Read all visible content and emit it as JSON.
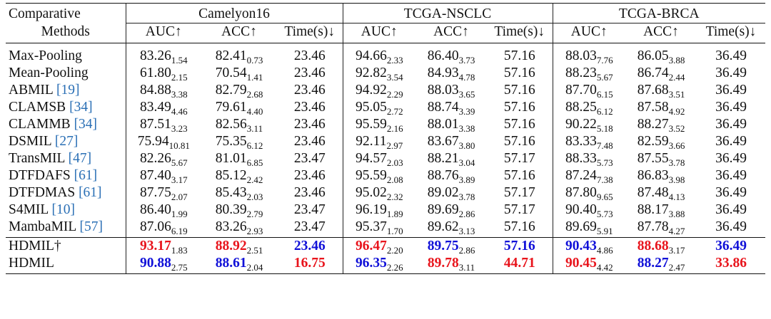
{
  "header": {
    "method_col_line1": "Comparative",
    "method_col_line2": "Methods",
    "groups": [
      "Camelyon16",
      "TCGA-NSCLC",
      "TCGA-BRCA"
    ],
    "subcols": [
      "AUC↑",
      "ACC↑",
      "Time(s)↓"
    ]
  },
  "rows": [
    {
      "name": "Max-Pooling",
      "ref": "",
      "cells": [
        [
          "83.26",
          "1.54"
        ],
        [
          "82.41",
          "0.73"
        ],
        [
          "23.46",
          ""
        ],
        [
          "94.66",
          "2.33"
        ],
        [
          "86.40",
          "3.73"
        ],
        [
          "57.16",
          ""
        ],
        [
          "88.03",
          "7.76"
        ],
        [
          "86.05",
          "3.88"
        ],
        [
          "36.49",
          ""
        ]
      ]
    },
    {
      "name": "Mean-Pooling",
      "ref": "",
      "cells": [
        [
          "61.80",
          "2.15"
        ],
        [
          "70.54",
          "1.41"
        ],
        [
          "23.46",
          ""
        ],
        [
          "92.82",
          "3.54"
        ],
        [
          "84.93",
          "4.78"
        ],
        [
          "57.16",
          ""
        ],
        [
          "88.23",
          "5.67"
        ],
        [
          "86.74",
          "2.44"
        ],
        [
          "36.49",
          ""
        ]
      ]
    },
    {
      "name": "ABMIL ",
      "ref": "[19]",
      "cells": [
        [
          "84.88",
          "3.38"
        ],
        [
          "82.79",
          "2.68"
        ],
        [
          "23.46",
          ""
        ],
        [
          "94.92",
          "2.29"
        ],
        [
          "88.03",
          "3.65"
        ],
        [
          "57.16",
          ""
        ],
        [
          "87.70",
          "6.15"
        ],
        [
          "87.68",
          "3.51"
        ],
        [
          "36.49",
          ""
        ]
      ]
    },
    {
      "name": "CLAMSB ",
      "ref": "[34]",
      "cells": [
        [
          "83.49",
          "4.46"
        ],
        [
          "79.61",
          "4.40"
        ],
        [
          "23.46",
          ""
        ],
        [
          "95.05",
          "2.72"
        ],
        [
          "88.74",
          "3.39"
        ],
        [
          "57.16",
          ""
        ],
        [
          "88.25",
          "6.12"
        ],
        [
          "87.58",
          "4.92"
        ],
        [
          "36.49",
          ""
        ]
      ]
    },
    {
      "name": "CLAMMB ",
      "ref": "[34]",
      "cells": [
        [
          "87.51",
          "3.23"
        ],
        [
          "82.56",
          "3.11"
        ],
        [
          "23.46",
          ""
        ],
        [
          "95.59",
          "2.16"
        ],
        [
          "88.01",
          "3.38"
        ],
        [
          "57.16",
          ""
        ],
        [
          "90.22",
          "5.18"
        ],
        [
          "88.27",
          "3.52"
        ],
        [
          "36.49",
          ""
        ]
      ]
    },
    {
      "name": "DSMIL ",
      "ref": "[27]",
      "cells": [
        [
          "75.94",
          "10.81"
        ],
        [
          "75.35",
          "6.12"
        ],
        [
          "23.46",
          ""
        ],
        [
          "92.11",
          "2.97"
        ],
        [
          "83.67",
          "3.80"
        ],
        [
          "57.16",
          ""
        ],
        [
          "83.33",
          "7.48"
        ],
        [
          "82.59",
          "3.66"
        ],
        [
          "36.49",
          ""
        ]
      ]
    },
    {
      "name": "TransMIL ",
      "ref": "[47]",
      "cells": [
        [
          "82.26",
          "5.67"
        ],
        [
          "81.01",
          "6.85"
        ],
        [
          "23.47",
          ""
        ],
        [
          "94.57",
          "2.03"
        ],
        [
          "88.21",
          "3.04"
        ],
        [
          "57.17",
          ""
        ],
        [
          "88.33",
          "5.73"
        ],
        [
          "87.55",
          "3.78"
        ],
        [
          "36.49",
          ""
        ]
      ]
    },
    {
      "name": "DTFDAFS ",
      "ref": "[61]",
      "cells": [
        [
          "87.40",
          "3.17"
        ],
        [
          "85.12",
          "2.42"
        ],
        [
          "23.46",
          ""
        ],
        [
          "95.59",
          "2.08"
        ],
        [
          "88.76",
          "3.89"
        ],
        [
          "57.16",
          ""
        ],
        [
          "87.24",
          "7.38"
        ],
        [
          "86.83",
          "3.98"
        ],
        [
          "36.49",
          ""
        ]
      ]
    },
    {
      "name": "DTFDMAS ",
      "ref": "[61]",
      "cells": [
        [
          "87.75",
          "2.07"
        ],
        [
          "85.43",
          "2.03"
        ],
        [
          "23.46",
          ""
        ],
        [
          "95.02",
          "2.32"
        ],
        [
          "89.02",
          "3.78"
        ],
        [
          "57.17",
          ""
        ],
        [
          "87.80",
          "9.65"
        ],
        [
          "87.48",
          "4.13"
        ],
        [
          "36.49",
          ""
        ]
      ]
    },
    {
      "name": "S4MIL ",
      "ref": "[10]",
      "cells": [
        [
          "86.40",
          "1.99"
        ],
        [
          "80.39",
          "2.79"
        ],
        [
          "23.47",
          ""
        ],
        [
          "96.19",
          "1.89"
        ],
        [
          "89.69",
          "2.86"
        ],
        [
          "57.17",
          ""
        ],
        [
          "90.40",
          "5.73"
        ],
        [
          "88.17",
          "3.88"
        ],
        [
          "36.49",
          ""
        ]
      ]
    },
    {
      "name": "MambaMIL ",
      "ref": "[57]",
      "cells": [
        [
          "87.06",
          "6.19"
        ],
        [
          "83.26",
          "2.93"
        ],
        [
          "23.47",
          ""
        ],
        [
          "95.37",
          "1.70"
        ],
        [
          "89.62",
          "3.13"
        ],
        [
          "57.16",
          ""
        ],
        [
          "89.69",
          "5.91"
        ],
        [
          "87.78",
          "4.27"
        ],
        [
          "36.49",
          ""
        ]
      ]
    }
  ],
  "ours": [
    {
      "name": "HDMIL†",
      "cells": [
        [
          "93.17",
          "1.83",
          "red"
        ],
        [
          "88.92",
          "2.51",
          "red"
        ],
        [
          "23.46",
          "",
          "blue"
        ],
        [
          "96.47",
          "2.20",
          "red"
        ],
        [
          "89.75",
          "2.86",
          "blue"
        ],
        [
          "57.16",
          "",
          "blue"
        ],
        [
          "90.43",
          "4.86",
          "blue"
        ],
        [
          "88.68",
          "3.17",
          "red"
        ],
        [
          "36.49",
          "",
          "blue"
        ]
      ]
    },
    {
      "name": "HDMIL",
      "cells": [
        [
          "90.88",
          "2.75",
          "blue"
        ],
        [
          "88.61",
          "2.04",
          "blue"
        ],
        [
          "16.75",
          "",
          "red"
        ],
        [
          "96.35",
          "2.26",
          "blue"
        ],
        [
          "89.78",
          "3.11",
          "red"
        ],
        [
          "44.71",
          "",
          "red"
        ],
        [
          "90.45",
          "4.42",
          "red"
        ],
        [
          "88.27",
          "2.47",
          "blue"
        ],
        [
          "33.86",
          "",
          "red"
        ]
      ]
    }
  ],
  "colors": {
    "best": "#e8141c",
    "second": "#1010d8",
    "ref": "#2a6fb5"
  }
}
